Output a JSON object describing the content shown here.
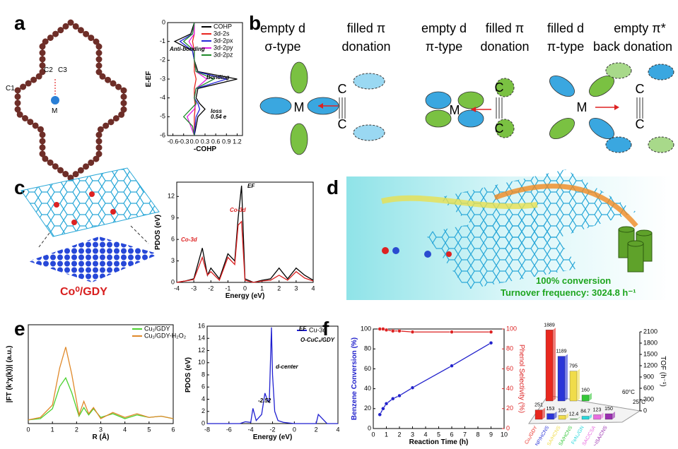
{
  "figure": {
    "panel_labels": [
      "a",
      "b",
      "c",
      "d",
      "e",
      "f"
    ],
    "a_labels": [
      "C1",
      "C2",
      "C3",
      "M"
    ],
    "b_text": [
      "empty d",
      "σ-type",
      "filled π",
      "donation",
      "empty d",
      "π-type",
      "filled π",
      "donation",
      "filled d",
      "π-type",
      "empty π*",
      "back donation"
    ],
    "b_atoms": [
      "M",
      "C",
      "C",
      "M",
      "C",
      "C",
      "M",
      "C",
      "C"
    ],
    "c_label": "Co⁰/GDY",
    "d_text": [
      "100% conversion",
      "Turnover frequency: 3024.8 h⁻¹"
    ]
  },
  "chart_data": [
    {
      "type": "line",
      "xlabel": "-COHP",
      "ylabel": "E-EF",
      "xlim": [
        -0.75,
        1.35
      ],
      "xticks": [
        -0.6,
        -0.3,
        {
          "value": 0,
          "label": "0.0"
        },
        0.3,
        0.6,
        0.9,
        1.2
      ],
      "ylim": [
        -6,
        0
      ],
      "yticks": [
        0,
        -1,
        -2,
        -3,
        -4,
        -5,
        -6
      ],
      "y": [
        -6,
        -5.5,
        -5,
        -4.6,
        -4.3,
        -4,
        -3.5,
        -3,
        -2.6,
        -2,
        -1.5,
        -1,
        -0.6,
        0
      ],
      "legend": "upper right",
      "annotations": [
        "Anti-bonding",
        "Bonding",
        "loss",
        "0.54 e"
      ],
      "series": [
        {
          "name": "COHP",
          "color": "#000000",
          "values": [
            0,
            0.05,
            0.1,
            0.3,
            0.15,
            0.05,
            0.1,
            1.2,
            0.1,
            0,
            -0.05,
            -0.55,
            -0.1,
            0
          ]
        },
        {
          "name": "3d-2s",
          "color": "#e8251f",
          "values": [
            0,
            0,
            0,
            0.02,
            0.02,
            0,
            0,
            0.05,
            0,
            0,
            0,
            -0.05,
            0,
            0
          ]
        },
        {
          "name": "3d-2px",
          "color": "#2525d8",
          "values": [
            0,
            0.02,
            0.05,
            0.15,
            0.1,
            0,
            0.05,
            0.9,
            0.05,
            0,
            -0.05,
            -0.4,
            -0.05,
            0
          ]
        },
        {
          "name": "3d-2py",
          "color": "#e020e0",
          "values": [
            0,
            -0.1,
            -0.2,
            0,
            0.05,
            0,
            0.05,
            0.35,
            0.05,
            0,
            0,
            -0.15,
            0,
            0
          ]
        },
        {
          "name": "3d-2pz",
          "color": "#1f8a2a",
          "values": [
            0,
            -0.05,
            -0.3,
            -0.1,
            0.05,
            0,
            0.05,
            0.55,
            0.05,
            0,
            0,
            -0.3,
            -0.05,
            0
          ]
        }
      ]
    },
    {
      "type": "line",
      "xlabel": "Energy (eV)",
      "ylabel": "PDOS (eV)",
      "xlim": [
        -4,
        4
      ],
      "xticks": [
        -4,
        -3,
        -2,
        -1,
        0,
        1,
        2,
        3,
        4
      ],
      "ylim": [
        0,
        14
      ],
      "yticks": [
        0,
        3,
        6,
        9,
        12
      ],
      "annotations": [
        "Co-3d",
        "Co-3d",
        "EF"
      ],
      "x": [
        -4,
        -3.5,
        -3,
        -2.5,
        -2.2,
        -2,
        -1.5,
        -1,
        -0.6,
        -0.4,
        -0.2,
        0,
        0.5,
        1,
        1.5,
        2,
        2.5,
        3,
        3.5,
        4
      ],
      "series": [
        {
          "color": "#000000",
          "values": [
            0,
            0.2,
            0.5,
            4.8,
            1,
            2,
            0.5,
            4,
            3,
            9,
            13.5,
            0.5,
            0,
            0.3,
            0.5,
            2,
            0.5,
            2,
            1,
            0.3
          ]
        },
        {
          "color": "#d81e1e",
          "values": [
            0,
            0.2,
            0.4,
            3.5,
            1,
            1.5,
            0.3,
            3.5,
            2.5,
            8,
            8.5,
            0.3,
            0,
            0.2,
            0.3,
            1,
            0.3,
            1.5,
            0.6,
            0.2
          ]
        }
      ]
    },
    {
      "type": "line",
      "xlabel": "R (Å)",
      "ylabel": "|FT (k³χ(k))| (a.u.)",
      "xlim": [
        0,
        6
      ],
      "xticks": [
        0,
        1,
        2,
        3,
        4,
        5,
        6
      ],
      "ylim": [
        0,
        8
      ],
      "legend": "upper right",
      "x": [
        0,
        0.5,
        1,
        1.3,
        1.55,
        1.8,
        2.1,
        2.3,
        2.5,
        2.7,
        3,
        3.5,
        4,
        4.5,
        5,
        5.5,
        6
      ],
      "series": [
        {
          "name": "Cu₁/GDY",
          "color": "#4cd12f",
          "values": [
            0.3,
            0.4,
            1.2,
            3,
            3.7,
            2.5,
            0.6,
            1.3,
            0.7,
            1.2,
            0.5,
            0.8,
            0.4,
            0.7,
            0.5,
            0.6,
            0.4
          ]
        },
        {
          "name": "Cu₁/GDY-H₂O₂",
          "color": "#e0892a",
          "values": [
            0.3,
            0.5,
            1.5,
            4.5,
            6.2,
            4,
            0.7,
            1.8,
            0.8,
            1.3,
            0.4,
            0.9,
            0.5,
            0.8,
            0.5,
            0.6,
            0.4
          ]
        }
      ]
    },
    {
      "type": "line",
      "xlabel": "Energy (eV)",
      "ylabel": "PDOS (eV)",
      "xlim": [
        -8,
        4
      ],
      "xticks": [
        -8,
        -6,
        -4,
        -2,
        0,
        2,
        4
      ],
      "ylim": [
        0,
        16
      ],
      "yticks": [
        0,
        2,
        4,
        6,
        8,
        10,
        12,
        14,
        16
      ],
      "legend": "upper right",
      "annotations": [
        "EF",
        "O-CuC₄/GDY",
        "d-center",
        "-2.52"
      ],
      "x": [
        -8,
        -6,
        -5,
        -4.5,
        -4,
        -3.8,
        -3.5,
        -3,
        -2.7,
        -2.5,
        -2.3,
        -2.1,
        -2,
        -1.8,
        -1.5,
        -1,
        0,
        1,
        2,
        2.2,
        3,
        4
      ],
      "series": [
        {
          "name": "Cu-3d",
          "color": "#1f1fd0",
          "values": [
            0,
            0,
            0,
            0.3,
            0.2,
            2.5,
            0.5,
            1.5,
            5,
            4,
            3.5,
            15.8,
            8,
            2,
            0.5,
            0.2,
            0,
            0,
            0,
            1.5,
            0,
            0
          ]
        }
      ]
    },
    {
      "type": "line",
      "xlabel": "Reaction Time (h)",
      "ylabel": "Benzene Conversion (%)",
      "y2label": "Phenol Selectivity (%)",
      "xlim": [
        0,
        10
      ],
      "xticks": [
        0,
        1,
        2,
        3,
        4,
        5,
        6,
        7,
        8,
        9,
        10
      ],
      "ylim": [
        0,
        100
      ],
      "yticks": [
        0,
        20,
        40,
        60,
        80,
        100
      ],
      "y2lim": [
        0,
        100
      ],
      "y2ticks": [
        0,
        20,
        40,
        60,
        80,
        100
      ],
      "markers": true,
      "x": [
        0.5,
        0.75,
        1,
        1.5,
        2,
        3,
        6,
        9
      ],
      "series": [
        {
          "color": "#2222cc",
          "values": [
            14,
            20,
            25,
            30,
            33,
            41,
            63,
            86
          ]
        },
        {
          "color": "#dd2222",
          "axis": "y2",
          "values": [
            100,
            100,
            99,
            98,
            98,
            97,
            97,
            97
          ]
        }
      ]
    },
    {
      "type": "bar3d",
      "zlabel": "TOF (h⁻¹)",
      "zlim": [
        0,
        2100
      ],
      "zticks": [
        0,
        300,
        600,
        900,
        1200,
        1500,
        1800,
        2100
      ],
      "categories": [
        "Cu₁/GDY",
        "Cu-NP/HCNS",
        "Cu₁-SA/HCNS",
        "Cu-SA/HCNS",
        "FeN₄/GN",
        "Cu₁-SAC/CSA",
        "Co-ISA/CNS"
      ],
      "colors": [
        "#e8281f",
        "#2a35d8",
        "#f0dc4a",
        "#35c83a",
        "#29d8dc",
        "#e86de0",
        "#9a2fb0"
      ],
      "series": [
        {
          "name": "60°C",
          "values": [
            1889,
            1189,
            795,
            160,
            null,
            null,
            null
          ]
        },
        {
          "name": "25°C",
          "values": [
            251,
            153,
            105,
            12.4,
            84.7,
            123,
            150
          ]
        }
      ]
    }
  ]
}
